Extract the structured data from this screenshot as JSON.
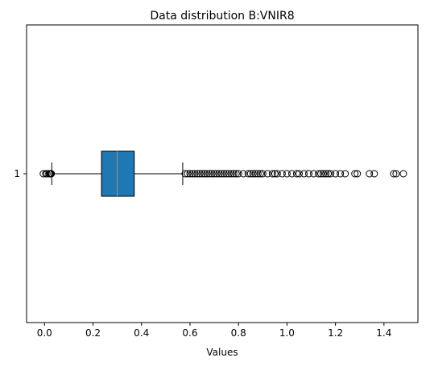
{
  "chart_data": {
    "type": "box",
    "title": "Data distribution B:VNIR8",
    "xlabel": "Values",
    "ylabel": "",
    "orientation": "horizontal",
    "xlim": [
      -0.074,
      1.54
    ],
    "x_ticks": [
      0.0,
      0.2,
      0.4,
      0.6,
      0.8,
      1.0,
      1.2,
      1.4
    ],
    "x_tick_labels": [
      "0.0",
      "0.2",
      "0.4",
      "0.6",
      "0.8",
      "1.0",
      "1.2",
      "1.4"
    ],
    "y_tick_labels": [
      "1"
    ],
    "grid": false,
    "box_color": "#1f77b4",
    "median_color": "#ff7f0e",
    "series": [
      {
        "position": 1,
        "whisker_low": 0.03,
        "q1": 0.235,
        "median": 0.3,
        "q3": 0.37,
        "whisker_high": 0.57,
        "outliers_low": [
          -0.005,
          0.005,
          0.01,
          0.018,
          0.022,
          0.025,
          0.028
        ],
        "outliers_high": [
          0.58,
          0.59,
          0.6,
          0.61,
          0.62,
          0.63,
          0.64,
          0.65,
          0.66,
          0.67,
          0.68,
          0.69,
          0.7,
          0.71,
          0.72,
          0.73,
          0.74,
          0.75,
          0.76,
          0.77,
          0.78,
          0.79,
          0.8,
          0.82,
          0.84,
          0.85,
          0.86,
          0.87,
          0.88,
          0.89,
          0.9,
          0.92,
          0.94,
          0.95,
          0.96,
          0.98,
          1.0,
          1.02,
          1.04,
          1.05,
          1.07,
          1.09,
          1.11,
          1.13,
          1.14,
          1.15,
          1.16,
          1.17,
          1.18,
          1.2,
          1.22,
          1.24,
          1.28,
          1.29,
          1.34,
          1.36,
          1.44,
          1.45,
          1.48
        ]
      }
    ]
  }
}
